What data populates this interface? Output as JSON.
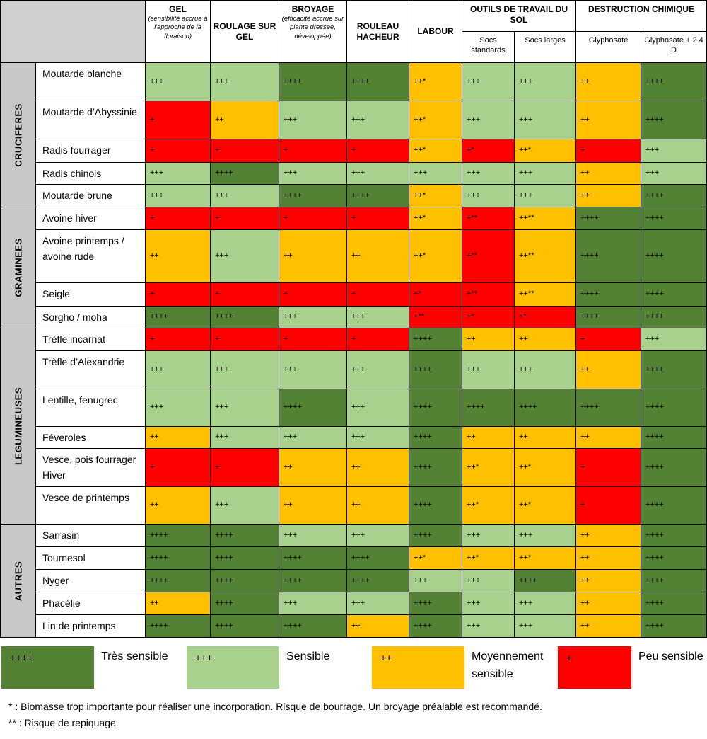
{
  "header": {
    "gel": {
      "title": "GEL",
      "subtitle": "(sensibilité accrue à l'approche de la floraison)"
    },
    "roulage": "ROULAGE SUR GEL",
    "broyage": {
      "title": "BROYAGE",
      "subtitle": "(efficacité accrue sur plante dressée, développée)"
    },
    "rouleau": "ROULEAU HACHEUR",
    "labour": "LABOUR",
    "outils": {
      "title": "OUTILS DE TRAVAIL DU SOL",
      "sub1": "Socs standards",
      "sub2": "Socs larges"
    },
    "destruction": {
      "title": "DESTRUCTION CHIMIQUE",
      "sub1": "Glyphosate",
      "sub2": "Glyphosate + 2.4 D"
    }
  },
  "groups": [
    {
      "label": "CRUCIFERES",
      "rows": [
        {
          "name": "Moutarde blanche",
          "cells": [
            "+++",
            "+++",
            "++++",
            "++++",
            "++*",
            "+++",
            "+++",
            "++",
            "++++"
          ]
        },
        {
          "name": "Moutarde d’Abyssinie",
          "cells": [
            "+",
            "++",
            "+++",
            "+++",
            "++*",
            "+++",
            "+++",
            "++",
            "++++"
          ]
        },
        {
          "name": "Radis fourrager",
          "cells": [
            "+",
            "+",
            "+",
            "+",
            "++*",
            "+*",
            "++*",
            "+",
            "+++"
          ]
        },
        {
          "name": "Radis chinois",
          "cells": [
            "+++",
            "++++",
            "+++",
            "+++",
            "+++",
            "+++",
            "+++",
            "++",
            "+++"
          ]
        },
        {
          "name": "Moutarde brune",
          "cells": [
            "+++",
            "+++",
            "++++",
            "++++",
            "++*",
            "+++",
            "+++",
            "++",
            "++++"
          ]
        }
      ]
    },
    {
      "label": "GRAMINEES",
      "rows": [
        {
          "name": "Avoine hiver",
          "cells": [
            "+",
            "+",
            "+",
            "+",
            "++*",
            "+**",
            "++**",
            "++++",
            "++++"
          ]
        },
        {
          "name": "Avoine printemps / avoine rude",
          "cells": [
            "++",
            "+++",
            "++",
            "++",
            "++*",
            "+**",
            "++**",
            "++++",
            "++++"
          ]
        },
        {
          "name": "Seigle",
          "cells": [
            "+",
            "+",
            "+",
            "+",
            "+*",
            "+**",
            "++**",
            "++++",
            "++++"
          ]
        },
        {
          "name": "Sorgho / moha",
          "cells": [
            "++++",
            "++++",
            "+++",
            "+++",
            "+**",
            "+*",
            "+*",
            "++++",
            "++++"
          ]
        }
      ]
    },
    {
      "label": "LEGUMINEUSES",
      "rows": [
        {
          "name": "Trèfle incarnat",
          "cells": [
            "+",
            "+",
            "+",
            "+",
            "++++",
            "++",
            "++",
            "+",
            "+++"
          ]
        },
        {
          "name": "Trèfle d’Alexandrie",
          "cells": [
            "+++",
            "+++",
            "+++",
            "+++",
            "++++",
            "+++",
            "+++",
            "++",
            "++++"
          ]
        },
        {
          "name": "Lentille, fenugrec",
          "cells": [
            "+++",
            "+++",
            "++++",
            "+++",
            "++++",
            "++++",
            "++++",
            "++++",
            "++++"
          ]
        },
        {
          "name": "Féveroles",
          "cells": [
            "++",
            "+++",
            "+++",
            "+++",
            "++++",
            "++",
            "++",
            "++",
            "++++"
          ]
        },
        {
          "name": "Vesce, pois fourrager Hiver",
          "cells": [
            "+",
            "+",
            "++",
            "++",
            "++++",
            "++*",
            "++*",
            "+",
            "++++"
          ]
        },
        {
          "name": "Vesce de printemps",
          "cells": [
            "++",
            "+++",
            "++",
            "++",
            "++++",
            "++*",
            "++*",
            "+",
            "++++"
          ]
        }
      ]
    },
    {
      "label": "AUTRES",
      "rows": [
        {
          "name": "Sarrasin",
          "cells": [
            "++++",
            "++++",
            "+++",
            "+++",
            "++++",
            "+++",
            "+++",
            "++",
            "++++"
          ]
        },
        {
          "name": "Tournesol",
          "cells": [
            "++++",
            "++++",
            "++++",
            "++++",
            "++*",
            "++*",
            "++*",
            "++",
            "++++"
          ]
        },
        {
          "name": "Nyger",
          "cells": [
            "++++",
            "++++",
            "++++",
            "++++",
            "+++",
            "+++",
            "++++",
            "++",
            "++++"
          ]
        },
        {
          "name": "Phacélie",
          "cells": [
            "++",
            "++++",
            "+++",
            "+++",
            "++++",
            "+++",
            "+++",
            "++",
            "++++"
          ]
        },
        {
          "name": "Lin de printemps",
          "cells": [
            "++++",
            "++++",
            "++++",
            "++",
            "++++",
            "+++",
            "+++",
            "++",
            "++++"
          ]
        }
      ]
    }
  ],
  "legend": [
    {
      "symbol": "++++",
      "label": "Très sensible"
    },
    {
      "symbol": "+++",
      "label": "Sensible"
    },
    {
      "symbol": "++",
      "label": "Moyennement sensible"
    },
    {
      "symbol": "+",
      "label": "Peu sensible"
    }
  ],
  "colors": {
    "tres_sensible": "#548235",
    "sensible": "#a9d18e",
    "moyennement": "#ffc000",
    "peu": "#ff0000",
    "group_bg": "#c8c8c8"
  },
  "notes": [
    "* : Biomasse trop importante pour réaliser une incorporation. Risque de bourrage. Un broyage préalable est recommandé.",
    "** : Risque de repiquage."
  ]
}
